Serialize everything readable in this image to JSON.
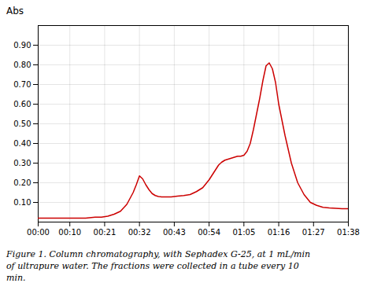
{
  "chart_data": {
    "type": "line",
    "ylabel": "Abs",
    "caption": [
      "Figure 1. Column chromatography, with Sephadex G-25, at 1 mL/min",
      "of ultrapure water. The fractions were collected in a tube every 10",
      "min."
    ],
    "color": "#cc0000",
    "grid": true,
    "x": [
      0,
      3,
      6,
      9,
      12,
      15,
      18,
      20,
      22,
      24,
      26,
      28,
      30,
      31,
      32,
      33,
      34,
      35,
      36,
      37,
      38,
      39,
      40,
      41,
      42,
      43,
      44,
      46,
      48,
      50,
      52,
      54,
      55,
      56,
      57,
      58,
      59,
      60,
      61,
      62,
      63,
      64,
      65,
      66,
      67,
      68,
      69,
      70,
      71,
      72,
      73,
      74,
      75,
      76,
      78,
      80,
      82,
      84,
      86,
      88,
      90,
      92,
      94,
      96,
      98
    ],
    "values": [
      0.02,
      0.02,
      0.02,
      0.02,
      0.02,
      0.02,
      0.025,
      0.025,
      0.03,
      0.04,
      0.055,
      0.09,
      0.15,
      0.19,
      0.235,
      0.22,
      0.19,
      0.165,
      0.145,
      0.135,
      0.13,
      0.128,
      0.128,
      0.128,
      0.128,
      0.13,
      0.132,
      0.135,
      0.14,
      0.155,
      0.175,
      0.215,
      0.24,
      0.265,
      0.29,
      0.305,
      0.315,
      0.32,
      0.325,
      0.33,
      0.335,
      0.335,
      0.34,
      0.36,
      0.4,
      0.47,
      0.55,
      0.63,
      0.72,
      0.795,
      0.81,
      0.78,
      0.71,
      0.6,
      0.44,
      0.3,
      0.2,
      0.14,
      0.1,
      0.085,
      0.075,
      0.072,
      0.07,
      0.068,
      0.068
    ],
    "xlim": [
      0,
      98
    ],
    "xticks": [
      {
        "value": 0,
        "label": "00:00"
      },
      {
        "value": 10,
        "label": "00:10"
      },
      {
        "value": 21,
        "label": "00:21"
      },
      {
        "value": 32,
        "label": "00:32"
      },
      {
        "value": 43,
        "label": "00:43"
      },
      {
        "value": 54,
        "label": "00:54"
      },
      {
        "value": 65,
        "label": "01:05"
      },
      {
        "value": 76,
        "label": "01:16"
      },
      {
        "value": 87,
        "label": "01:27"
      },
      {
        "value": 98,
        "label": "01:38"
      }
    ],
    "ylim": [
      0,
      1.0
    ],
    "yticks": [
      {
        "value": 0.1,
        "label": "0.10"
      },
      {
        "value": 0.2,
        "label": "0.20"
      },
      {
        "value": 0.3,
        "label": "0.30"
      },
      {
        "value": 0.4,
        "label": "0.40"
      },
      {
        "value": 0.5,
        "label": "0.50"
      },
      {
        "value": 0.6,
        "label": "0.60"
      },
      {
        "value": 0.7,
        "label": "0.70"
      },
      {
        "value": 0.8,
        "label": "0.80"
      },
      {
        "value": 0.9,
        "label": "0.90"
      }
    ]
  }
}
